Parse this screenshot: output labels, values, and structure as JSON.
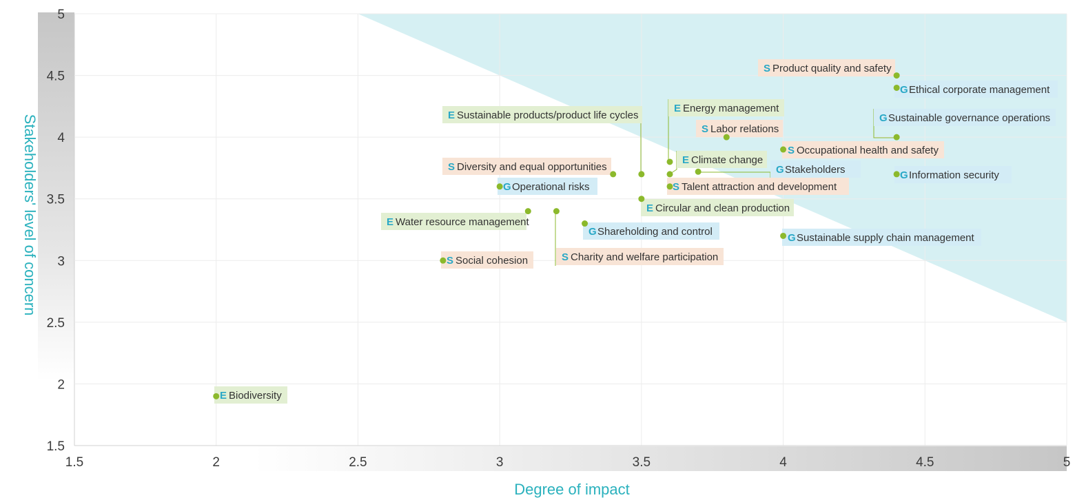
{
  "chart_data": {
    "type": "scatter",
    "title": "",
    "xlabel": "Degree of impact",
    "ylabel": "Stakeholders' level of concern",
    "xlim": [
      1.5,
      5
    ],
    "ylim": [
      1.5,
      5
    ],
    "x_ticks": [
      "1.5",
      "2",
      "2.5",
      "3",
      "3.5",
      "4",
      "4.5",
      "5"
    ],
    "y_ticks": [
      "1.5",
      "2",
      "2.5",
      "3",
      "3.5",
      "4",
      "4.5",
      "5"
    ],
    "grid": true,
    "highlight_region": {
      "polygon": [
        [
          2.5,
          5
        ],
        [
          5,
          5
        ],
        [
          5,
          2.5
        ]
      ],
      "color": "#d6f0f3"
    },
    "category_colors": {
      "E": "#e2efd2",
      "S": "#f8e4d6",
      "G": "#d3ecf6",
      "marker": "#8cb92c",
      "leader": "#8cb92c"
    },
    "points": [
      {
        "cat": "E",
        "label": "Biodiversity",
        "x": 2.0,
        "y": 1.9
      },
      {
        "cat": "S",
        "label": "Social cohesion",
        "x": 2.8,
        "y": 3.0
      },
      {
        "cat": "G",
        "label": "Operational risks",
        "x": 3.0,
        "y": 3.6
      },
      {
        "cat": "E",
        "label": "Water resource management",
        "x": 3.1,
        "y": 3.4
      },
      {
        "cat": "S",
        "label": "Charity and welfare participation",
        "x": 3.2,
        "y": 3.4
      },
      {
        "cat": "G",
        "label": "Shareholding and control",
        "x": 3.3,
        "y": 3.3
      },
      {
        "cat": "S",
        "label": "Diversity and equal opportunities",
        "x": 3.4,
        "y": 3.7
      },
      {
        "cat": "E",
        "label": "Sustainable products/product life cycles",
        "x": 3.5,
        "y": 3.7
      },
      {
        "cat": "E",
        "label": "Circular and clean production",
        "x": 3.5,
        "y": 3.5
      },
      {
        "cat": "E",
        "label": "Energy management",
        "x": 3.6,
        "y": 3.8
      },
      {
        "cat": "E",
        "label": "Climate change",
        "x": 3.6,
        "y": 3.7
      },
      {
        "cat": "S",
        "label": "Talent attraction and development",
        "x": 3.6,
        "y": 3.6
      },
      {
        "cat": "G",
        "label": "Stakeholders",
        "x": 3.7,
        "y": 3.72
      },
      {
        "cat": "S",
        "label": "Labor relations",
        "x": 3.8,
        "y": 4.0
      },
      {
        "cat": "S",
        "label": "Occupational health and safety",
        "x": 4.0,
        "y": 3.9
      },
      {
        "cat": "G",
        "label": "Sustainable supply chain management",
        "x": 4.0,
        "y": 3.2
      },
      {
        "cat": "S",
        "label": "Product quality and safety",
        "x": 4.4,
        "y": 4.5
      },
      {
        "cat": "G",
        "label": "Ethical corporate management",
        "x": 4.4,
        "y": 4.4
      },
      {
        "cat": "G",
        "label": "Sustainable governance operations",
        "x": 4.4,
        "y": 4.0
      },
      {
        "cat": "G",
        "label": "Information security",
        "x": 4.4,
        "y": 3.7
      }
    ]
  }
}
